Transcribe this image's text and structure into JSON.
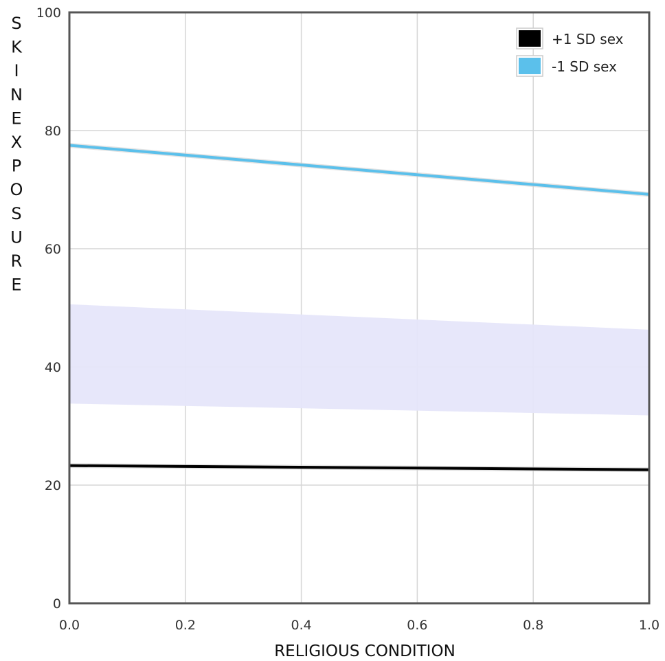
{
  "chart_data": {
    "type": "line",
    "title": "",
    "xlabel": "RELIGIOUS CONDITION",
    "ylabel": "SKINEXPOSURE",
    "xlim": [
      0,
      1
    ],
    "ylim": [
      0,
      100
    ],
    "x_ticks": [
      "0.0",
      "0.2",
      "0.4",
      "0.6",
      "0.8",
      "1.0"
    ],
    "y_ticks": [
      "0",
      "20",
      "40",
      "60",
      "80",
      "100"
    ],
    "grid": true,
    "legend_position": "top-right",
    "x": [
      0,
      1
    ],
    "series": [
      {
        "name": "+1 SD sex",
        "color": "#000000",
        "values": [
          23.3,
          22.6
        ]
      },
      {
        "name": "-1 SD sex",
        "color": "#5bc0eb",
        "values": [
          77.5,
          69.2
        ]
      }
    ],
    "band": {
      "color": "#e6e6fa",
      "upper": [
        50.6,
        46.3
      ],
      "lower": [
        33.8,
        31.8
      ]
    }
  }
}
